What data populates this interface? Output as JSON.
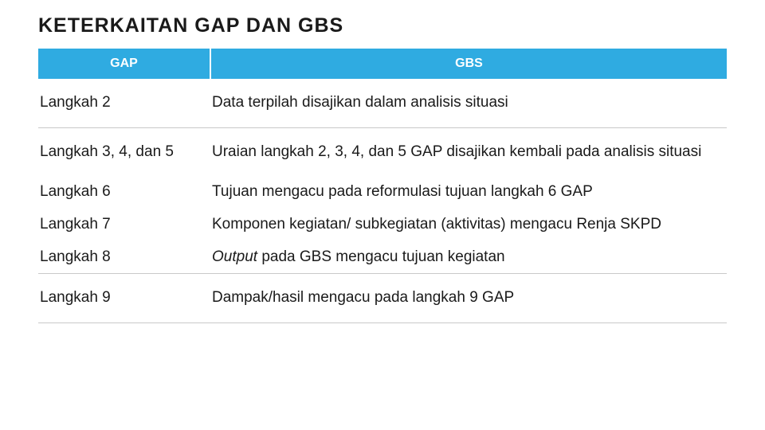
{
  "title": "KETERKAITAN GAP DAN GBS",
  "table": {
    "columns": [
      "GAP",
      "GBS"
    ],
    "header_bg": "#2fabe1",
    "header_fg": "#ffffff",
    "border_color": "#c9c9c9",
    "col_widths": [
      "25%",
      "75%"
    ],
    "rows": [
      {
        "gap": "Langkah 2",
        "gbs": "Data terpilah disajikan dalam analisis situasi",
        "bordered": true,
        "tight": false
      },
      {
        "gap": "Langkah 3, 4, dan 5",
        "gbs": "Uraian langkah 2, 3, 4, dan 5 GAP disajikan kembali pada analisis situasi",
        "bordered": false,
        "tight": false
      },
      {
        "gap": "Langkah 6",
        "gbs": "Tujuan mengacu pada reformulasi tujuan langkah 6 GAP",
        "bordered": false,
        "tight": true
      },
      {
        "gap": "Langkah 7",
        "gbs": "Komponen kegiatan/ subkegiatan (aktivitas) mengacu Renja SKPD",
        "bordered": false,
        "tight": true
      },
      {
        "gap": "Langkah 8",
        "gbs_prefix_italic": "Output",
        "gbs_rest": " pada GBS mengacu tujuan kegiatan",
        "bordered": true,
        "tight": true
      },
      {
        "gap": "Langkah 9",
        "gbs": "Dampak/hasil mengacu pada langkah 9 GAP",
        "bordered": true,
        "tight": false
      }
    ]
  }
}
